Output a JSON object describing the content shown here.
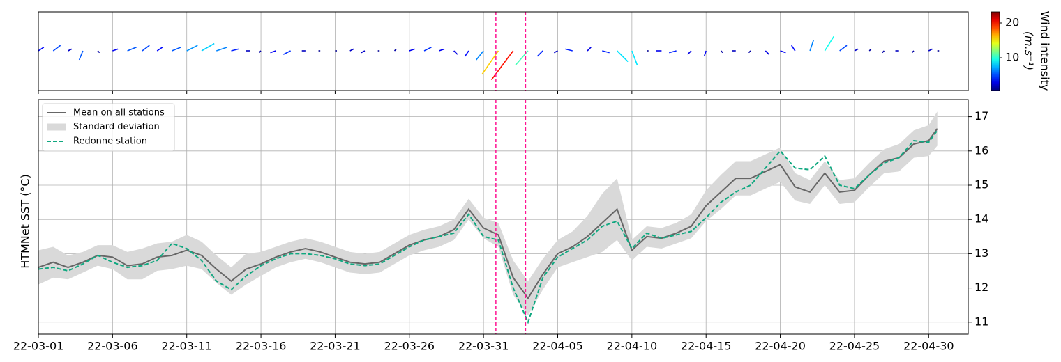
{
  "chart_data": {
    "type": "line",
    "ylabel": "HTMNet SST (°C)",
    "colorbar_label": "Wind intensity",
    "colorbar_unit": "(m.s⁻¹)",
    "clim": [
      0.6,
      23.2
    ],
    "cticks": [
      10,
      20
    ],
    "colormap": "jet",
    "xlim": [
      "22-03-01",
      "22-05-02 16:00"
    ],
    "xticks": [
      "22-03-01",
      "22-03-06",
      "22-03-11",
      "22-03-16",
      "22-03-21",
      "22-03-26",
      "22-03-31",
      "22-04-05",
      "22-04-10",
      "22-04-15",
      "22-04-20",
      "22-04-25",
      "22-04-30"
    ],
    "ylim": [
      10.65,
      17.5
    ],
    "yticks": [
      11,
      12,
      13,
      14,
      15,
      16,
      17
    ],
    "grid": true,
    "legend": "upper left",
    "vlines": [
      "22-03-31 20:00",
      "22-04-02 20:00"
    ],
    "vline_color": "#ff1493",
    "x": [
      "22-03-01",
      "22-03-02",
      "22-03-03",
      "22-03-04",
      "22-03-05",
      "22-03-06",
      "22-03-07",
      "22-03-08",
      "22-03-09",
      "22-03-10",
      "22-03-11",
      "22-03-12",
      "22-03-13",
      "22-03-14",
      "22-03-15",
      "22-03-16",
      "22-03-17",
      "22-03-18",
      "22-03-19",
      "22-03-20",
      "22-03-21",
      "22-03-22",
      "22-03-23",
      "22-03-24",
      "22-03-25",
      "22-03-26",
      "22-03-27",
      "22-03-28",
      "22-03-29",
      "22-03-30",
      "22-03-31",
      "22-04-01",
      "22-04-02",
      "22-04-03",
      "22-04-04",
      "22-04-05",
      "22-04-06",
      "22-04-07",
      "22-04-08",
      "22-04-09",
      "22-04-10",
      "22-04-11",
      "22-04-12",
      "22-04-13",
      "22-04-14",
      "22-04-15",
      "22-04-16",
      "22-04-17",
      "22-04-18",
      "22-04-19",
      "22-04-20",
      "22-04-21",
      "22-04-22",
      "22-04-23",
      "22-04-24",
      "22-04-25",
      "22-04-26",
      "22-04-27",
      "22-04-28",
      "22-04-29",
      "22-04-30",
      "22-04-30 14:00"
    ],
    "series": [
      {
        "name": "Mean on all stations",
        "color": "#666666",
        "values": [
          12.6,
          12.75,
          12.6,
          12.75,
          12.95,
          12.9,
          12.65,
          12.7,
          12.9,
          12.95,
          13.1,
          12.95,
          12.55,
          12.2,
          12.55,
          12.7,
          12.9,
          13.05,
          13.15,
          13.05,
          12.9,
          12.75,
          12.7,
          12.75,
          13.0,
          13.25,
          13.4,
          13.5,
          13.7,
          14.3,
          13.75,
          13.55,
          12.3,
          11.7,
          12.4,
          13.0,
          13.2,
          13.5,
          13.9,
          14.3,
          13.1,
          13.5,
          13.45,
          13.6,
          13.8,
          14.4,
          14.8,
          15.2,
          15.2,
          15.4,
          15.6,
          14.95,
          14.8,
          15.35,
          14.8,
          14.85,
          15.3,
          15.7,
          15.8,
          16.2,
          16.3,
          16.65
        ]
      },
      {
        "name": "Standard deviation",
        "color": "#d9d9d9",
        "values": [
          0.5,
          0.45,
          0.35,
          0.3,
          0.3,
          0.35,
          0.4,
          0.45,
          0.4,
          0.4,
          0.45,
          0.4,
          0.4,
          0.4,
          0.45,
          0.35,
          0.3,
          0.3,
          0.3,
          0.3,
          0.3,
          0.3,
          0.3,
          0.3,
          0.3,
          0.3,
          0.3,
          0.3,
          0.3,
          0.3,
          0.3,
          0.35,
          0.5,
          0.5,
          0.45,
          0.4,
          0.45,
          0.6,
          0.85,
          0.9,
          0.3,
          0.3,
          0.3,
          0.3,
          0.35,
          0.45,
          0.5,
          0.5,
          0.5,
          0.5,
          0.5,
          0.4,
          0.35,
          0.35,
          0.35,
          0.35,
          0.35,
          0.35,
          0.4,
          0.4,
          0.45,
          0.5
        ]
      },
      {
        "name": "Redonne station",
        "color": "#10a880",
        "dash": true,
        "values": [
          12.55,
          12.6,
          12.5,
          12.7,
          12.95,
          12.75,
          12.6,
          12.65,
          12.8,
          13.3,
          13.15,
          12.8,
          12.2,
          11.95,
          12.35,
          12.65,
          12.85,
          13.0,
          13.0,
          12.95,
          12.85,
          12.7,
          12.65,
          12.7,
          12.95,
          13.2,
          13.4,
          13.5,
          13.6,
          14.15,
          13.5,
          13.4,
          12.0,
          11.0,
          12.3,
          12.9,
          13.15,
          13.4,
          13.8,
          13.95,
          13.15,
          13.6,
          13.45,
          13.55,
          13.65,
          14.05,
          14.5,
          14.8,
          15.0,
          15.5,
          16.0,
          15.5,
          15.45,
          15.85,
          15.0,
          14.9,
          15.3,
          15.65,
          15.8,
          16.3,
          16.25,
          16.6
        ]
      }
    ],
    "wind": {
      "u": [
        3,
        4,
        2,
        -2,
        1,
        3,
        5,
        4,
        3,
        5,
        6,
        7,
        6,
        4,
        2,
        -1,
        -3,
        -4,
        -2,
        -1,
        1,
        2,
        -2,
        -1,
        1,
        3,
        4,
        3,
        2,
        -2,
        -4,
        -9,
        -12,
        -7,
        -3,
        -2,
        -4,
        2,
        4,
        6,
        3,
        1,
        -3,
        -4,
        -2,
        -1,
        1,
        -2,
        -1,
        2,
        3,
        -2,
        2,
        5,
        4,
        2,
        1,
        -1,
        -2,
        -1,
        2,
        1
      ],
      "v": [
        2,
        3,
        1,
        -5,
        -1,
        1,
        2,
        3,
        2,
        2,
        3,
        4,
        2,
        1,
        0,
        -1,
        -1,
        -2,
        0,
        0,
        0,
        1,
        -1,
        0,
        1,
        1,
        2,
        1,
        -2,
        -3,
        -5,
        -13,
        -16,
        -8,
        -3,
        -1,
        1,
        2,
        -1,
        -6,
        -8,
        0,
        0,
        -1,
        -2,
        -3,
        -1,
        0,
        -1,
        -2,
        -1,
        3,
        6,
        8,
        3,
        1,
        1,
        -1,
        0,
        -1,
        1,
        0
      ]
    }
  }
}
